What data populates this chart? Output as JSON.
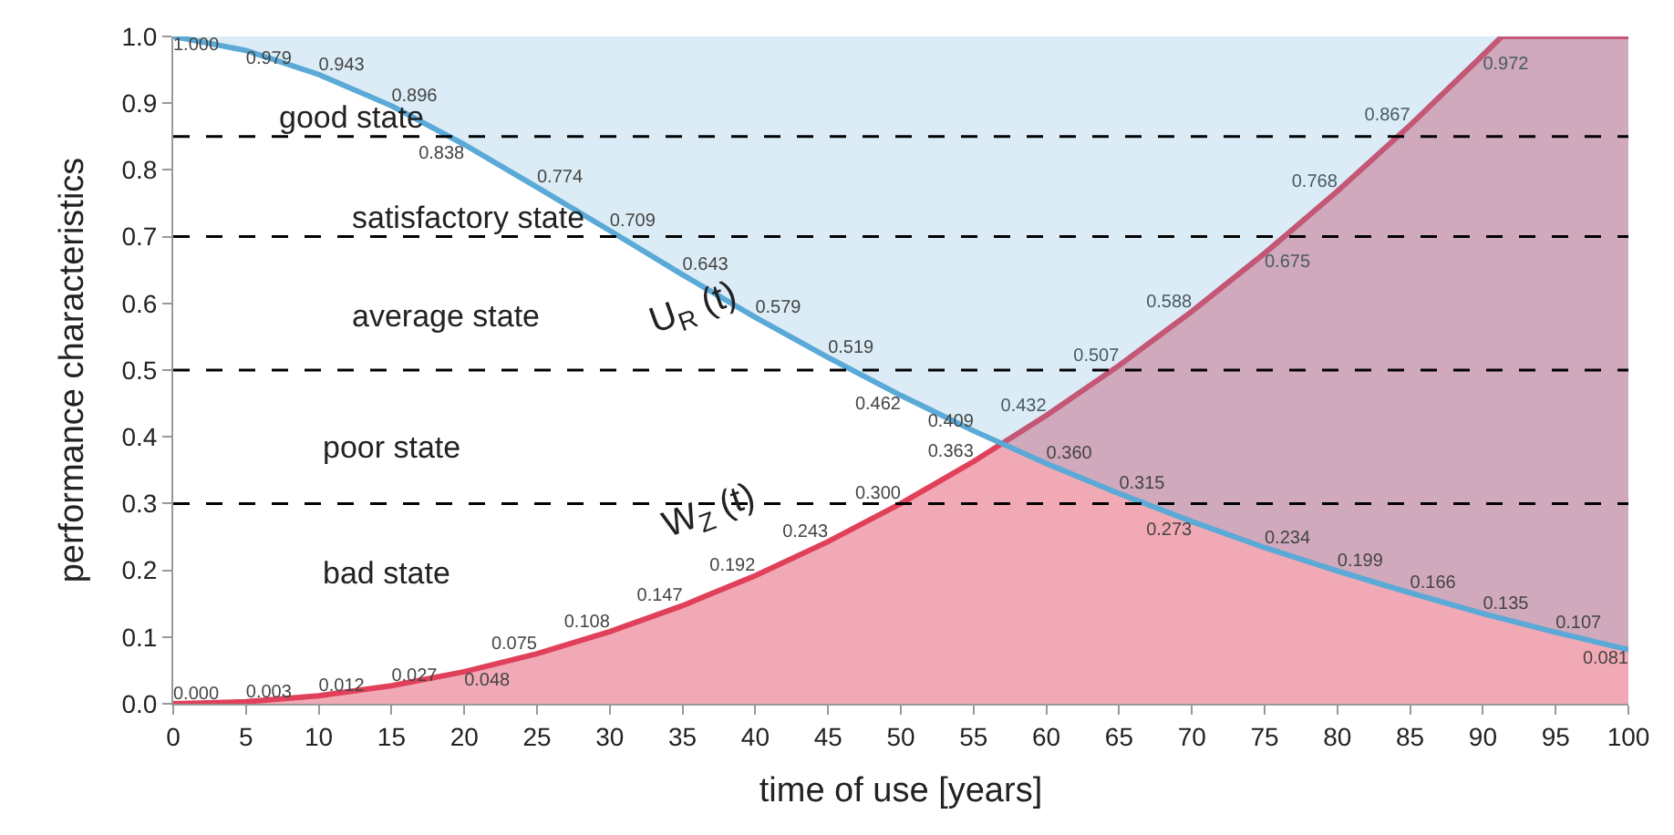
{
  "chart_data": {
    "type": "area",
    "xlabel": "time of use [years]",
    "ylabel": "performance characteristics",
    "x": [
      0,
      5,
      10,
      15,
      20,
      25,
      30,
      35,
      40,
      45,
      50,
      55,
      60,
      65,
      70,
      75,
      80,
      85,
      90,
      95,
      100
    ],
    "series": [
      {
        "type": "line",
        "color": "#5aa9d6",
        "values": [
          1.0,
          0.979,
          0.943,
          0.896,
          0.838,
          0.774,
          0.709,
          0.643,
          0.579,
          0.519,
          0.462,
          0.409,
          0.36,
          0.315,
          0.273,
          0.234,
          0.199,
          0.166,
          0.135,
          0.107,
          0.081
        ],
        "value_labels": [
          "1.000",
          "0.979",
          "0.943",
          "0.896",
          "0.838",
          "0.774",
          "0.709",
          "0.643",
          "0.579",
          "0.519",
          "0.462",
          "0.409",
          "0.360",
          "0.315",
          "0.273",
          "0.234",
          "0.199",
          "0.166",
          "0.135",
          "0.107",
          "0.081"
        ]
      },
      {
        "color": "#e0405a",
        "x": [
          0,
          5,
          10,
          15,
          20,
          25,
          30,
          35,
          40,
          45,
          50,
          55,
          60,
          65,
          70,
          75,
          80,
          85,
          90,
          91.3,
          100
        ],
        "values": [
          0.0,
          0.003,
          0.012,
          0.027,
          0.048,
          0.075,
          0.108,
          0.147,
          0.192,
          0.243,
          0.3,
          0.363,
          0.432,
          0.507,
          0.588,
          0.675,
          0.768,
          0.867,
          0.972,
          1.0,
          1.0
        ],
        "value_labels": [
          "0.000",
          "0.003",
          "0.012",
          "0.027",
          "0.048",
          "0.075",
          "0.108",
          "0.147",
          "0.192",
          "0.243",
          "0.300",
          "0.363",
          "0.432",
          "0.507",
          "0.588",
          "0.675",
          "0.768",
          "0.867",
          "0.972",
          null,
          null
        ]
      }
    ],
    "ref_lines": [
      {
        "axis": "y",
        "value": 0.85,
        "color": "#000000",
        "line_style": "dashed"
      },
      {
        "axis": "y",
        "value": 0.7,
        "color": "#000000",
        "line_style": "dashed"
      },
      {
        "axis": "y",
        "value": 0.5,
        "color": "#000000",
        "line_style": "dashed"
      },
      {
        "axis": "y",
        "value": 0.3,
        "color": "#000000",
        "line_style": "dashed"
      }
    ],
    "annotations": [
      "good state",
      "satisfactory state",
      "average state",
      "poor state",
      "bad state",
      "U$_{R}$ (t)",
      "W$_{Z}$ (t)"
    ],
    "xlim": [
      0,
      100
    ],
    "xticks": [
      0,
      5,
      10,
      15,
      20,
      25,
      30,
      35,
      40,
      45,
      50,
      55,
      60,
      65,
      70,
      75,
      80,
      85,
      90,
      95,
      100
    ],
    "ylim": [
      0,
      1
    ],
    "yticks": [
      {
        "value": 0,
        "label": "0.0"
      },
      {
        "value": 0.1,
        "label": "0.1"
      },
      {
        "value": 0.2,
        "label": "0.2"
      },
      {
        "value": 0.3,
        "label": "0.3"
      },
      {
        "value": 0.4,
        "label": "0.4"
      },
      {
        "value": 0.5,
        "label": "0.5"
      },
      {
        "value": 0.6,
        "label": "0.6"
      },
      {
        "value": 0.7,
        "label": "0.7"
      },
      {
        "value": 0.8,
        "label": "0.8"
      },
      {
        "value": 0.9,
        "label": "0.9"
      },
      {
        "value": 1,
        "label": "1.0"
      }
    ],
    "marker": "none",
    "line_style": "solid"
  }
}
